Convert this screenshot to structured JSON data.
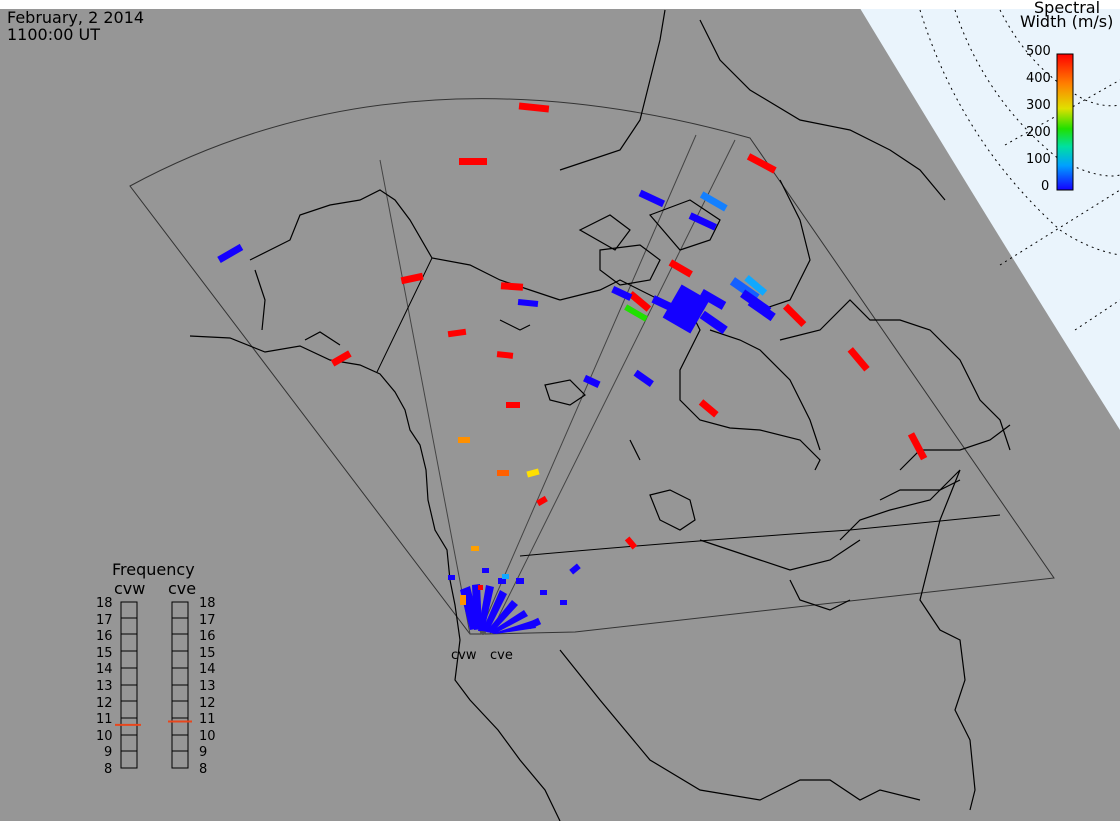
{
  "header": {
    "date": "February, 2 2014",
    "time": "1100:00 UT"
  },
  "colorbar": {
    "title_line1": "Spectral",
    "title_line2": "Width (m/s)",
    "ticks": [
      "500",
      "400",
      "300",
      "200",
      "100",
      "0"
    ]
  },
  "frequency": {
    "title": "Frequency",
    "columns": [
      {
        "name": "cvw",
        "selected_mhz": 10.6
      },
      {
        "name": "cve",
        "selected_mhz": 10.8
      }
    ],
    "ticks": [
      "18",
      "17",
      "16",
      "15",
      "14",
      "13",
      "12",
      "11",
      "10",
      "9",
      "8"
    ]
  },
  "radars": {
    "west_label": "cvw",
    "east_label": "cve"
  },
  "colors": {
    "background": "#ffffff",
    "map_gray": "#969696",
    "pole_fill": "#eaf4fc",
    "scale_high": "#ff0000",
    "scale_low": "#1400ff",
    "freq_marker": "#e8461c"
  }
}
